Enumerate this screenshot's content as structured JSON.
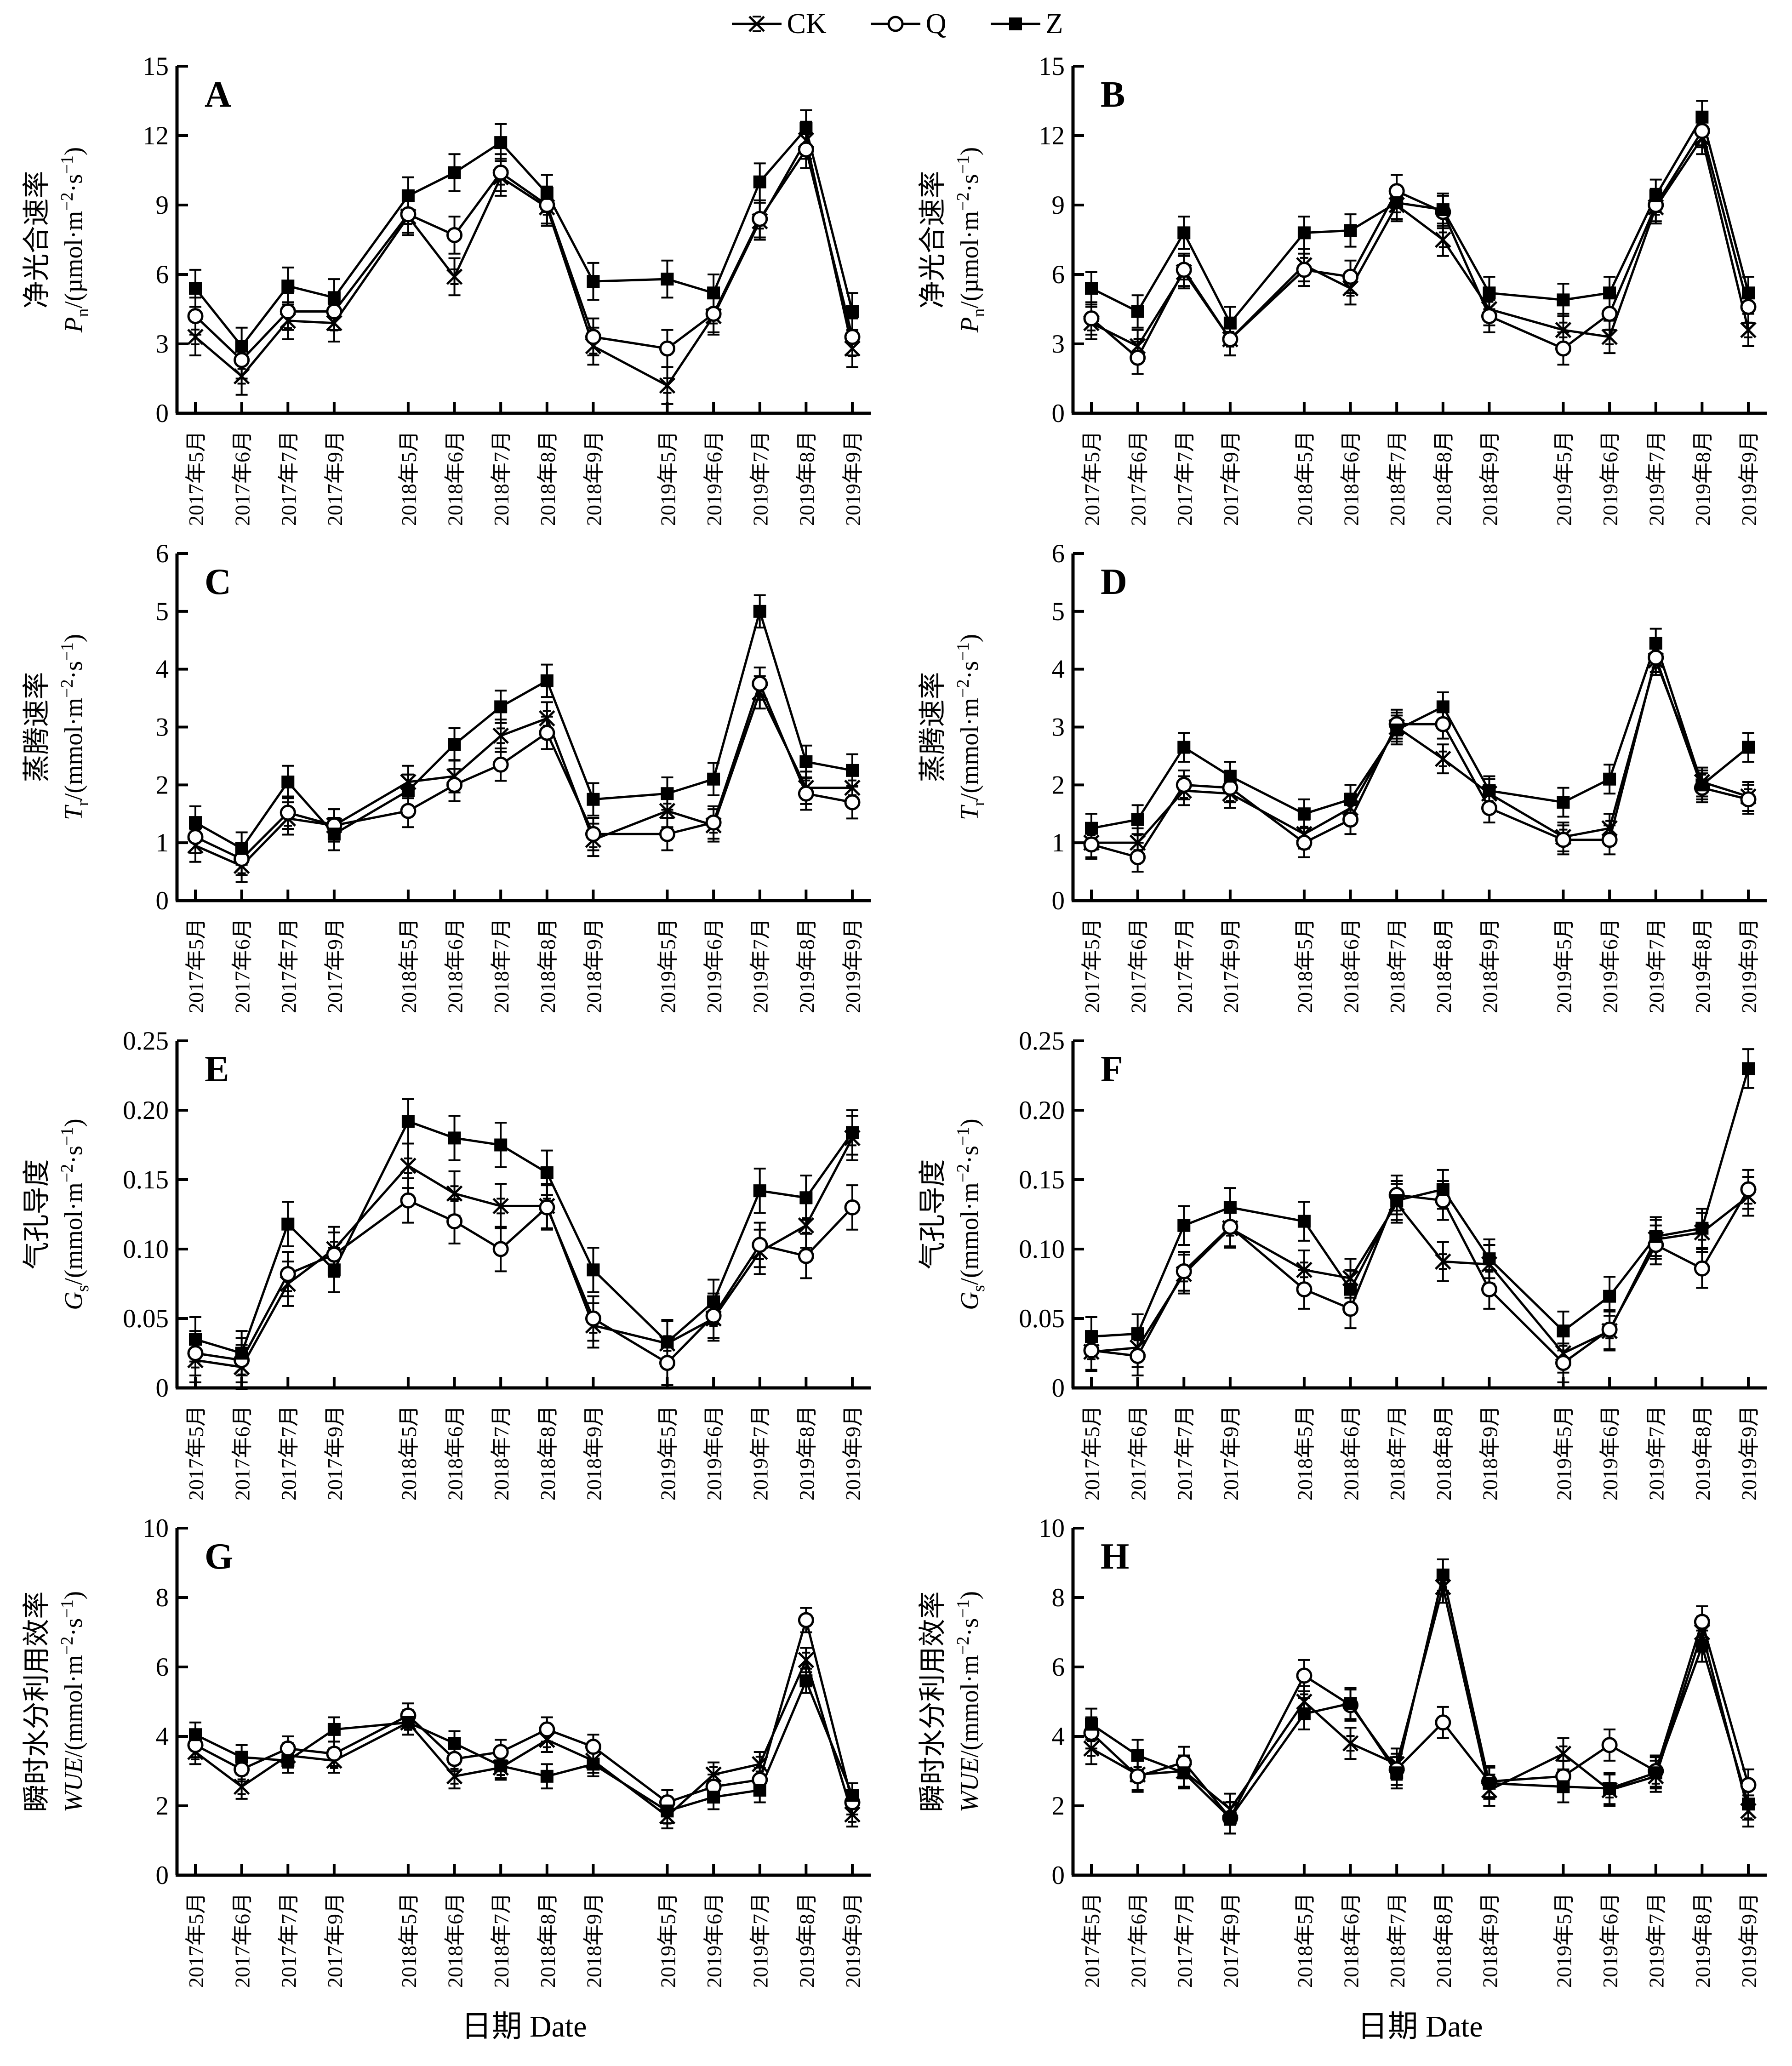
{
  "legend": {
    "items": [
      {
        "label": "CK",
        "marker": "x-asterisk"
      },
      {
        "label": "Q",
        "marker": "open-circle"
      },
      {
        "label": "Z",
        "marker": "filled-square"
      }
    ]
  },
  "xaxis_title": "日期 Date",
  "colors": {
    "fg": "#000000",
    "bg": "#ffffff"
  },
  "chart_data": {
    "type": "line",
    "categories": [
      "2017年5月",
      "2017年6月",
      "2017年7月",
      "2017年9月",
      "2018年5月",
      "2018年6月",
      "2018年7月",
      "2018年8月",
      "2018年9月",
      "2019年5月",
      "2019年6月",
      "2019年7月",
      "2019年8月",
      "2019年9月"
    ],
    "x_positions": [
      0,
      1,
      2,
      3,
      4.6,
      5.6,
      6.6,
      7.6,
      8.6,
      10.2,
      11.2,
      12.2,
      13.2,
      14.2
    ],
    "grid": false,
    "legend_position": "top-center",
    "rows": [
      {
        "ylabel_cn": "净光合速率",
        "var_parts": [
          [
            "i",
            "P"
          ],
          [
            "d",
            "n"
          ],
          [
            "r",
            "/(µmol·m"
          ],
          [
            "u",
            "−2"
          ],
          [
            "r",
            "·s"
          ],
          [
            "u",
            "−1"
          ],
          [
            "r",
            ")"
          ]
        ],
        "ymax": 15,
        "yticks": [
          {
            "v": 0,
            "l": "0"
          },
          {
            "v": 3,
            "l": "3"
          },
          {
            "v": 6,
            "l": "6"
          },
          {
            "v": 9,
            "l": "9"
          },
          {
            "v": 12,
            "l": "12"
          },
          {
            "v": 15,
            "l": "15"
          }
        ]
      },
      {
        "ylabel_cn": "蒸腾速率",
        "var_parts": [
          [
            "i",
            "T"
          ],
          [
            "d",
            "r"
          ],
          [
            "r",
            "/(mmol·m"
          ],
          [
            "u",
            "−2"
          ],
          [
            "r",
            "·s"
          ],
          [
            "u",
            "−1"
          ],
          [
            "r",
            ")"
          ]
        ],
        "ymax": 6,
        "yticks": [
          {
            "v": 0,
            "l": "0"
          },
          {
            "v": 1,
            "l": "1"
          },
          {
            "v": 2,
            "l": "2"
          },
          {
            "v": 3,
            "l": "3"
          },
          {
            "v": 4,
            "l": "4"
          },
          {
            "v": 5,
            "l": "5"
          },
          {
            "v": 6,
            "l": "6"
          }
        ]
      },
      {
        "ylabel_cn": "气孔导度",
        "var_parts": [
          [
            "i",
            "G"
          ],
          [
            "d",
            "s"
          ],
          [
            "r",
            "/(mmol·m"
          ],
          [
            "u",
            "−2"
          ],
          [
            "r",
            "·s"
          ],
          [
            "u",
            "−1"
          ],
          [
            "r",
            ")"
          ]
        ],
        "ymax": 0.25,
        "yticks": [
          {
            "v": 0,
            "l": "0"
          },
          {
            "v": 0.05,
            "l": "0.05"
          },
          {
            "v": 0.1,
            "l": "0.10"
          },
          {
            "v": 0.15,
            "l": "0.15"
          },
          {
            "v": 0.2,
            "l": "0.20"
          },
          {
            "v": 0.25,
            "l": "0.25"
          }
        ]
      },
      {
        "ylabel_cn": "瞬时水分利用效率",
        "var_parts": [
          [
            "i",
            "WUE"
          ],
          [
            "r",
            "/(mmol·m"
          ],
          [
            "u",
            "−2"
          ],
          [
            "r",
            "·s"
          ],
          [
            "u",
            "−1"
          ],
          [
            "r",
            ")"
          ]
        ],
        "ymax": 10,
        "yticks": [
          {
            "v": 0,
            "l": "0"
          },
          {
            "v": 2,
            "l": "2"
          },
          {
            "v": 4,
            "l": "4"
          },
          {
            "v": 6,
            "l": "6"
          },
          {
            "v": 8,
            "l": "8"
          },
          {
            "v": 10,
            "l": "10"
          }
        ]
      }
    ],
    "panels": [
      {
        "letter": "A",
        "row": 0,
        "err": 0.8,
        "series": [
          {
            "name": "CK",
            "values": [
              3.3,
              1.6,
              4.0,
              3.9,
              8.5,
              5.9,
              10.2,
              8.9,
              2.9,
              1.2,
              4.2,
              8.3,
              11.8,
              2.8
            ]
          },
          {
            "name": "Q",
            "values": [
              4.2,
              2.3,
              4.4,
              4.4,
              8.6,
              7.7,
              10.4,
              9.0,
              3.3,
              2.8,
              4.3,
              8.4,
              11.4,
              3.3
            ]
          },
          {
            "name": "Z",
            "values": [
              5.4,
              2.9,
              5.5,
              5.0,
              9.4,
              10.4,
              11.7,
              9.5,
              5.7,
              5.8,
              5.2,
              10.0,
              12.3,
              4.4
            ]
          }
        ]
      },
      {
        "letter": "B",
        "row": 0,
        "err": 0.7,
        "series": [
          {
            "name": "CK",
            "values": [
              3.9,
              2.9,
              6.1,
              3.2,
              6.4,
              5.4,
              9.0,
              7.5,
              4.5,
              3.6,
              3.3,
              8.9,
              11.9,
              3.6
            ]
          },
          {
            "name": "Q",
            "values": [
              4.1,
              2.4,
              6.2,
              3.2,
              6.2,
              5.9,
              9.6,
              8.7,
              4.2,
              2.8,
              4.3,
              9.0,
              12.2,
              4.6
            ]
          },
          {
            "name": "Z",
            "values": [
              5.4,
              4.4,
              7.8,
              3.9,
              7.8,
              7.9,
              9.1,
              8.8,
              5.2,
              4.9,
              5.2,
              9.4,
              12.8,
              5.2
            ]
          }
        ]
      },
      {
        "letter": "C",
        "row": 1,
        "err": 0.28,
        "series": [
          {
            "name": "CK",
            "values": [
              0.95,
              0.6,
              1.42,
              1.3,
              2.05,
              2.15,
              2.85,
              3.15,
              1.05,
              1.55,
              1.3,
              3.6,
              1.95,
              1.95
            ]
          },
          {
            "name": "Q",
            "values": [
              1.1,
              0.72,
              1.52,
              1.3,
              1.55,
              2.0,
              2.35,
              2.9,
              1.15,
              1.15,
              1.35,
              3.75,
              1.85,
              1.7
            ]
          },
          {
            "name": "Z",
            "values": [
              1.35,
              0.9,
              2.05,
              1.15,
              1.9,
              2.7,
              3.35,
              3.8,
              1.75,
              1.85,
              2.1,
              5.0,
              2.4,
              2.25
            ]
          }
        ]
      },
      {
        "letter": "D",
        "row": 1,
        "err": 0.25,
        "series": [
          {
            "name": "CK",
            "values": [
              1.0,
              1.0,
              1.9,
              1.85,
              1.15,
              1.6,
              3.0,
              2.45,
              1.85,
              1.1,
              1.25,
              4.15,
              2.05,
              1.8
            ]
          },
          {
            "name": "Q",
            "values": [
              0.97,
              0.75,
              2.0,
              1.95,
              1.0,
              1.4,
              3.05,
              3.05,
              1.6,
              1.05,
              1.05,
              4.2,
              1.95,
              1.75
            ]
          },
          {
            "name": "Z",
            "values": [
              1.25,
              1.4,
              2.65,
              2.15,
              1.5,
              1.75,
              2.95,
              3.35,
              1.9,
              1.7,
              2.1,
              4.45,
              2.0,
              2.65
            ]
          }
        ]
      },
      {
        "letter": "E",
        "row": 2,
        "err": 0.016,
        "series": [
          {
            "name": "CK",
            "values": [
              0.02,
              0.015,
              0.075,
              0.1,
              0.16,
              0.14,
              0.131,
              0.131,
              0.045,
              0.032,
              0.05,
              0.098,
              0.117,
              0.18
            ]
          },
          {
            "name": "Q",
            "values": [
              0.025,
              0.02,
              0.082,
              0.096,
              0.135,
              0.12,
              0.1,
              0.13,
              0.05,
              0.018,
              0.052,
              0.103,
              0.095,
              0.13
            ]
          },
          {
            "name": "Z",
            "values": [
              0.035,
              0.025,
              0.118,
              0.085,
              0.192,
              0.18,
              0.175,
              0.155,
              0.085,
              0.033,
              0.062,
              0.142,
              0.137,
              0.184
            ]
          }
        ]
      },
      {
        "letter": "F",
        "row": 2,
        "err": 0.014,
        "series": [
          {
            "name": "CK",
            "values": [
              0.026,
              0.029,
              0.082,
              0.115,
              0.085,
              0.079,
              0.133,
              0.091,
              0.089,
              0.025,
              0.041,
              0.107,
              0.112,
              0.138
            ]
          },
          {
            "name": "Q",
            "values": [
              0.027,
              0.023,
              0.084,
              0.116,
              0.071,
              0.057,
              0.139,
              0.135,
              0.071,
              0.018,
              0.042,
              0.103,
              0.086,
              0.143
            ]
          },
          {
            "name": "Z",
            "values": [
              0.037,
              0.039,
              0.117,
              0.13,
              0.12,
              0.071,
              0.135,
              0.143,
              0.093,
              0.041,
              0.066,
              0.109,
              0.115,
              0.23
            ]
          }
        ]
      },
      {
        "letter": "G",
        "row": 3,
        "err": 0.35,
        "series": [
          {
            "name": "CK",
            "values": [
              3.55,
              2.55,
              3.45,
              3.3,
              4.4,
              2.85,
              3.1,
              3.9,
              3.3,
              1.7,
              2.9,
              3.2,
              6.2,
              1.75
            ]
          },
          {
            "name": "Q",
            "values": [
              3.75,
              3.05,
              3.65,
              3.5,
              4.6,
              3.35,
              3.55,
              4.2,
              3.7,
              2.1,
              2.55,
              2.75,
              7.35,
              2.1
            ]
          },
          {
            "name": "Z",
            "values": [
              4.05,
              3.4,
              3.3,
              4.2,
              4.4,
              3.8,
              3.15,
              2.85,
              3.2,
              1.85,
              2.25,
              2.45,
              5.6,
              2.3
            ]
          }
        ]
      },
      {
        "letter": "H",
        "row": 3,
        "err": 0.45,
        "series": [
          {
            "name": "CK",
            "values": [
              3.65,
              2.9,
              3.0,
              1.9,
              5.0,
              3.8,
              3.2,
              8.3,
              2.45,
              3.5,
              2.45,
              2.85,
              7.0,
              1.85
            ]
          },
          {
            "name": "Q",
            "values": [
              4.1,
              2.85,
              3.25,
              1.65,
              5.75,
              4.9,
              3.05,
              4.4,
              2.7,
              2.85,
              3.75,
              3.0,
              7.3,
              2.6
            ]
          },
          {
            "name": "Z",
            "values": [
              4.35,
              3.45,
              2.95,
              1.65,
              4.65,
              4.95,
              2.95,
              8.65,
              2.65,
              2.55,
              2.5,
              2.95,
              6.6,
              2.05
            ]
          }
        ]
      }
    ]
  }
}
